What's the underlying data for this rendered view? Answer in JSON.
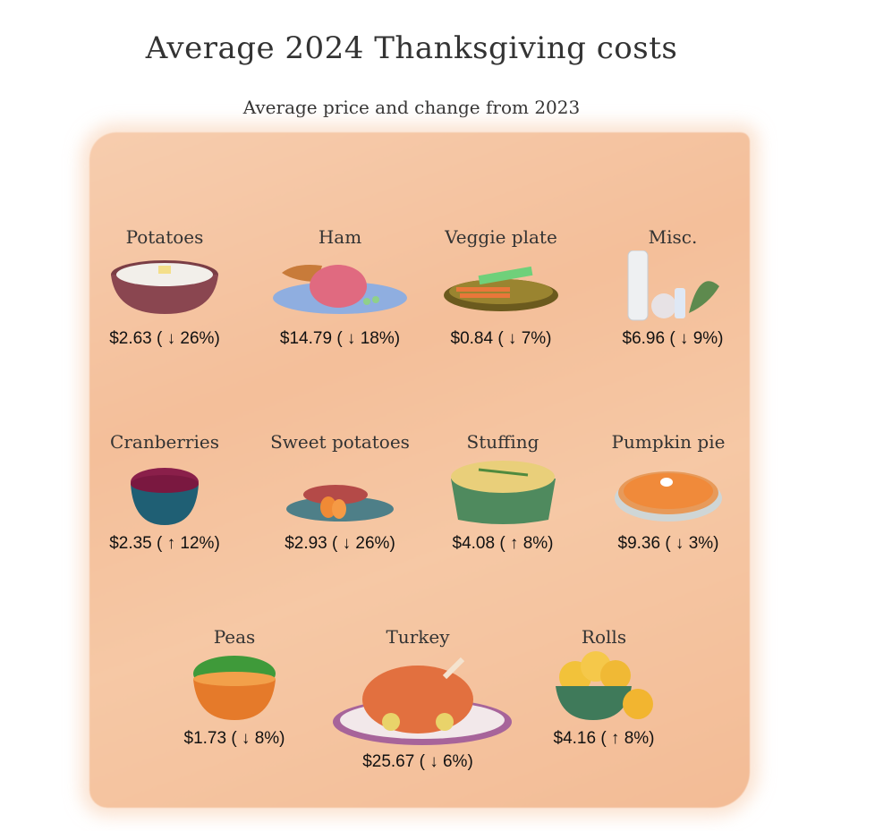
{
  "title": "Average 2024 Thanksgiving costs",
  "subtitle": "Average price and change from 2023",
  "items": [
    {
      "name": "Potatoes",
      "price": "$2.63 ( ↓ 26%)",
      "icon": "mashed-potatoes-icon"
    },
    {
      "name": "Ham",
      "price": "$14.79 ( ↓ 18%)",
      "icon": "ham-icon"
    },
    {
      "name": "Veggie plate",
      "price": "$0.84 ( ↓ 7%)",
      "icon": "veggie-plate-icon"
    },
    {
      "name": "Misc.",
      "price": "$6.96 ( ↓ 9%)",
      "icon": "misc-groceries-icon"
    },
    {
      "name": "Cranberries",
      "price": "$2.35 ( ↑ 12%)",
      "icon": "cranberries-icon"
    },
    {
      "name": "Sweet potatoes",
      "price": "$2.93 ( ↓ 26%)",
      "icon": "sweet-potatoes-icon"
    },
    {
      "name": "Stuffing",
      "price": "$4.08 ( ↑ 8%)",
      "icon": "stuffing-icon"
    },
    {
      "name": "Pumpkin pie",
      "price": "$9.36 ( ↓ 3%)",
      "icon": "pumpkin-pie-icon"
    },
    {
      "name": "Peas",
      "price": "$1.73 ( ↓ 8%)",
      "icon": "peas-icon"
    },
    {
      "name": "Turkey",
      "price": "$25.67 ( ↓ 6%)",
      "icon": "turkey-icon"
    },
    {
      "name": "Rolls",
      "price": "$4.16 ( ↑ 8%)",
      "icon": "rolls-icon"
    }
  ]
}
